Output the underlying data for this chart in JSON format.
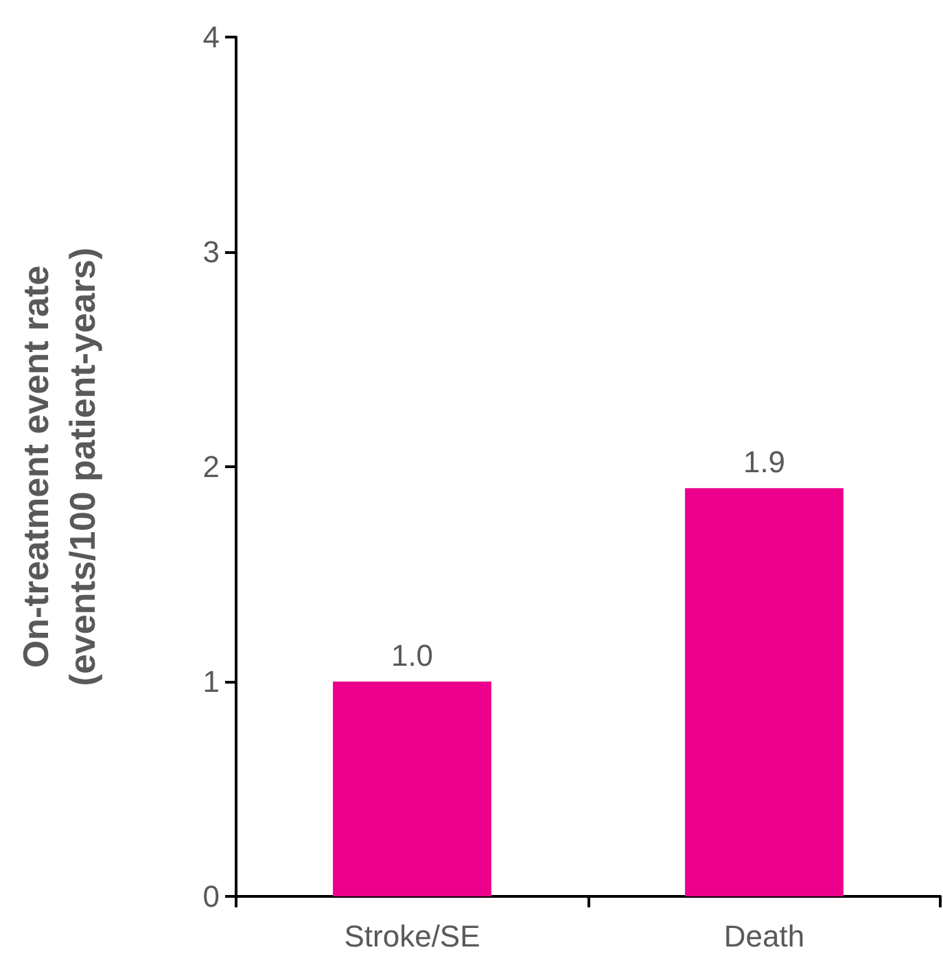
{
  "chart_data": {
    "type": "bar",
    "ylabel": "On-treatment event rate\n(events/100 patient-years)",
    "categories": [
      "Stroke/SE",
      "Death"
    ],
    "values": [
      1.0,
      1.9
    ],
    "value_labels": [
      "1.0",
      "1.9"
    ],
    "color": "#ec008c",
    "ylim": [
      0,
      4
    ],
    "yticks": [
      0,
      1,
      2,
      3,
      4
    ],
    "grid": false
  }
}
